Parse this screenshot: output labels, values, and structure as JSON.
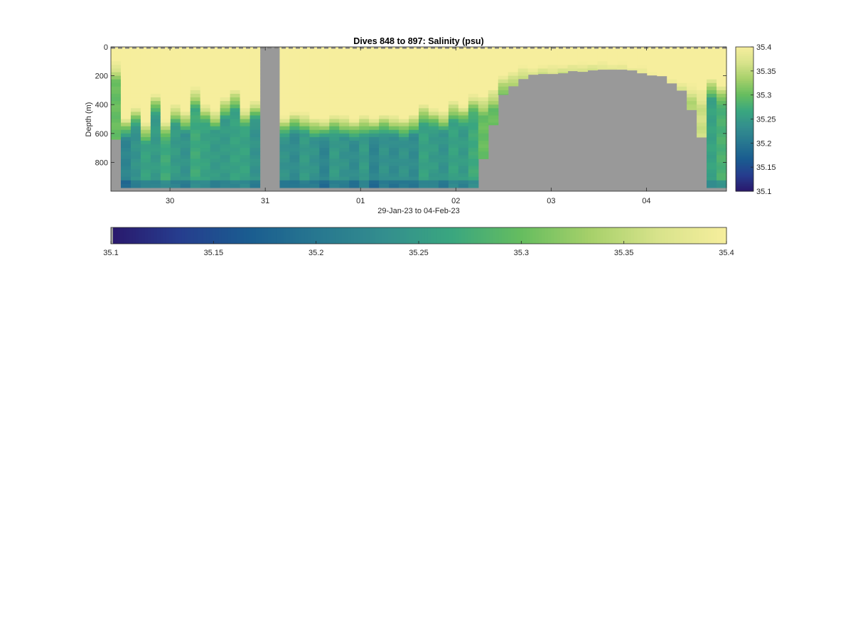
{
  "chart_data": {
    "type": "heatmap",
    "title": "Dives 848 to 897: Salinity (psu)",
    "xlabel": "29-Jan-23 to 04-Feb-23",
    "ylabel": "Depth (m)",
    "x_tick_labels": [
      "30",
      "31",
      "01",
      "02",
      "03",
      "04"
    ],
    "x_tick_values": [
      1.0,
      2.0,
      3.0,
      4.0,
      5.0,
      6.0
    ],
    "xlim": [
      0.38,
      6.84
    ],
    "y_tick_labels": [
      "0",
      "200",
      "400",
      "600",
      "800"
    ],
    "y_tick_values": [
      0,
      200,
      400,
      600,
      800
    ],
    "ylim": [
      0,
      1000
    ],
    "y_reversed": true,
    "color_limits": [
      35.1,
      35.4
    ],
    "colormap": [
      "#2a186c",
      "#263d8e",
      "#1a5c90",
      "#277790",
      "#338e8e",
      "#3aa77f",
      "#66bd5f",
      "#a6d06a",
      "#d8e38b",
      "#f6ee9d"
    ],
    "nan_color": "#999999",
    "right_colorbar_ticks": [
      "35.1",
      "35.15",
      "35.2",
      "35.25",
      "35.3",
      "35.35",
      "35.4"
    ],
    "bottom_colorbar_ticks": [
      "35.1",
      "35.15",
      "35.2",
      "35.25",
      "35.3",
      "35.35",
      "35.4"
    ],
    "bottom_depth_m": [
      640,
      975,
      975,
      975,
      975,
      975,
      975,
      975,
      975,
      975,
      975,
      975,
      975,
      975,
      975,
      0,
      0,
      975,
      975,
      975,
      975,
      975,
      975,
      975,
      975,
      975,
      975,
      975,
      975,
      975,
      975,
      975,
      975,
      975,
      975,
      975,
      975,
      775,
      540,
      330,
      270,
      220,
      190,
      185,
      185,
      180,
      165,
      170,
      160,
      155,
      155,
      155,
      160,
      180,
      195,
      200,
      250,
      300,
      435,
      625,
      975,
      975
    ],
    "thermocline_depth_m": [
      80,
      470,
      390,
      500,
      300,
      480,
      380,
      430,
      260,
      370,
      420,
      330,
      270,
      400,
      350,
      0,
      0,
      460,
      430,
      440,
      470,
      480,
      440,
      460,
      480,
      450,
      470,
      440,
      460,
      470,
      450,
      370,
      400,
      430,
      350,
      380,
      300,
      310,
      260,
      160,
      140,
      110,
      105,
      100,
      95,
      90,
      85,
      80,
      75,
      80,
      85,
      90,
      100,
      110,
      150,
      170,
      190,
      200,
      220,
      240,
      190,
      230
    ],
    "deep_salinity_psu": [
      35.3,
      35.22,
      35.24,
      35.26,
      35.25,
      35.27,
      35.25,
      35.24,
      35.27,
      35.26,
      35.25,
      35.25,
      35.26,
      35.26,
      35.24,
      35.3,
      35.3,
      35.24,
      35.23,
      35.25,
      35.24,
      35.22,
      35.25,
      35.24,
      35.23,
      35.25,
      35.22,
      35.24,
      35.23,
      35.24,
      35.23,
      35.26,
      35.25,
      35.24,
      35.26,
      35.25,
      35.27,
      35.3,
      35.3,
      35.3,
      35.3,
      35.3,
      35.31,
      35.3,
      35.31,
      35.3,
      35.31,
      35.3,
      35.31,
      35.3,
      35.31,
      35.3,
      35.31,
      35.32,
      35.32,
      35.33,
      35.33,
      35.33,
      35.34,
      35.36,
      35.26,
      35.28
    ]
  }
}
